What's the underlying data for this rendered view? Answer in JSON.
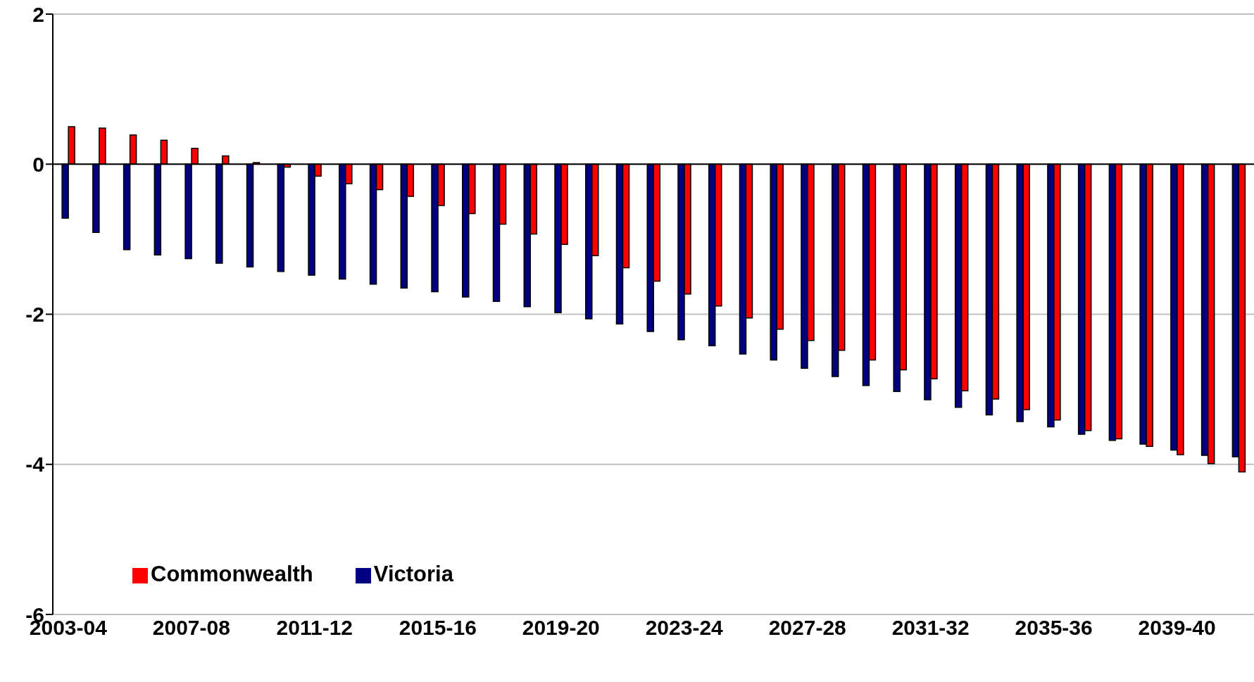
{
  "chart_data": {
    "type": "bar",
    "categories": [
      "2003-04",
      null,
      null,
      null,
      "2007-08",
      null,
      null,
      null,
      "2011-12",
      null,
      null,
      null,
      "2015-16",
      null,
      null,
      null,
      "2019-20",
      null,
      null,
      null,
      "2023-24",
      null,
      null,
      null,
      "2027-28",
      null,
      null,
      null,
      "2031-32",
      null,
      null,
      null,
      "2035-36",
      null,
      null,
      null,
      "2039-40",
      null,
      null
    ],
    "series": [
      {
        "name": "Victoria",
        "color": "#000080",
        "values": [
          -0.72,
          -0.91,
          -1.14,
          -1.21,
          -1.26,
          -1.32,
          -1.37,
          -1.43,
          -1.48,
          -1.53,
          -1.6,
          -1.65,
          -1.7,
          -1.77,
          -1.83,
          -1.9,
          -1.98,
          -2.06,
          -2.13,
          -2.23,
          -2.34,
          -2.42,
          -2.53,
          -2.61,
          -2.72,
          -2.83,
          -2.95,
          -3.03,
          -3.14,
          -3.24,
          -3.34,
          -3.43,
          -3.5,
          -3.6,
          -3.68,
          -3.73,
          -3.81,
          -3.88,
          -3.9
        ]
      },
      {
        "name": "Commonwealth",
        "color": "#ff0000",
        "values": [
          0.5,
          0.48,
          0.39,
          0.32,
          0.21,
          0.11,
          0.02,
          -0.04,
          -0.16,
          -0.26,
          -0.34,
          -0.43,
          -0.55,
          -0.66,
          -0.8,
          -0.93,
          -1.07,
          -1.22,
          -1.38,
          -1.56,
          -1.73,
          -1.89,
          -2.05,
          -2.2,
          -2.35,
          -2.48,
          -2.61,
          -2.74,
          -2.86,
          -3.02,
          -3.13,
          -3.27,
          -3.41,
          -3.55,
          -3.66,
          -3.76,
          -3.87,
          -3.99,
          -4.1
        ]
      }
    ],
    "ylim": [
      -6,
      2
    ],
    "yticks": [
      -6,
      -4,
      -2,
      0,
      2
    ],
    "grid": "y",
    "legend": "bottom left"
  }
}
